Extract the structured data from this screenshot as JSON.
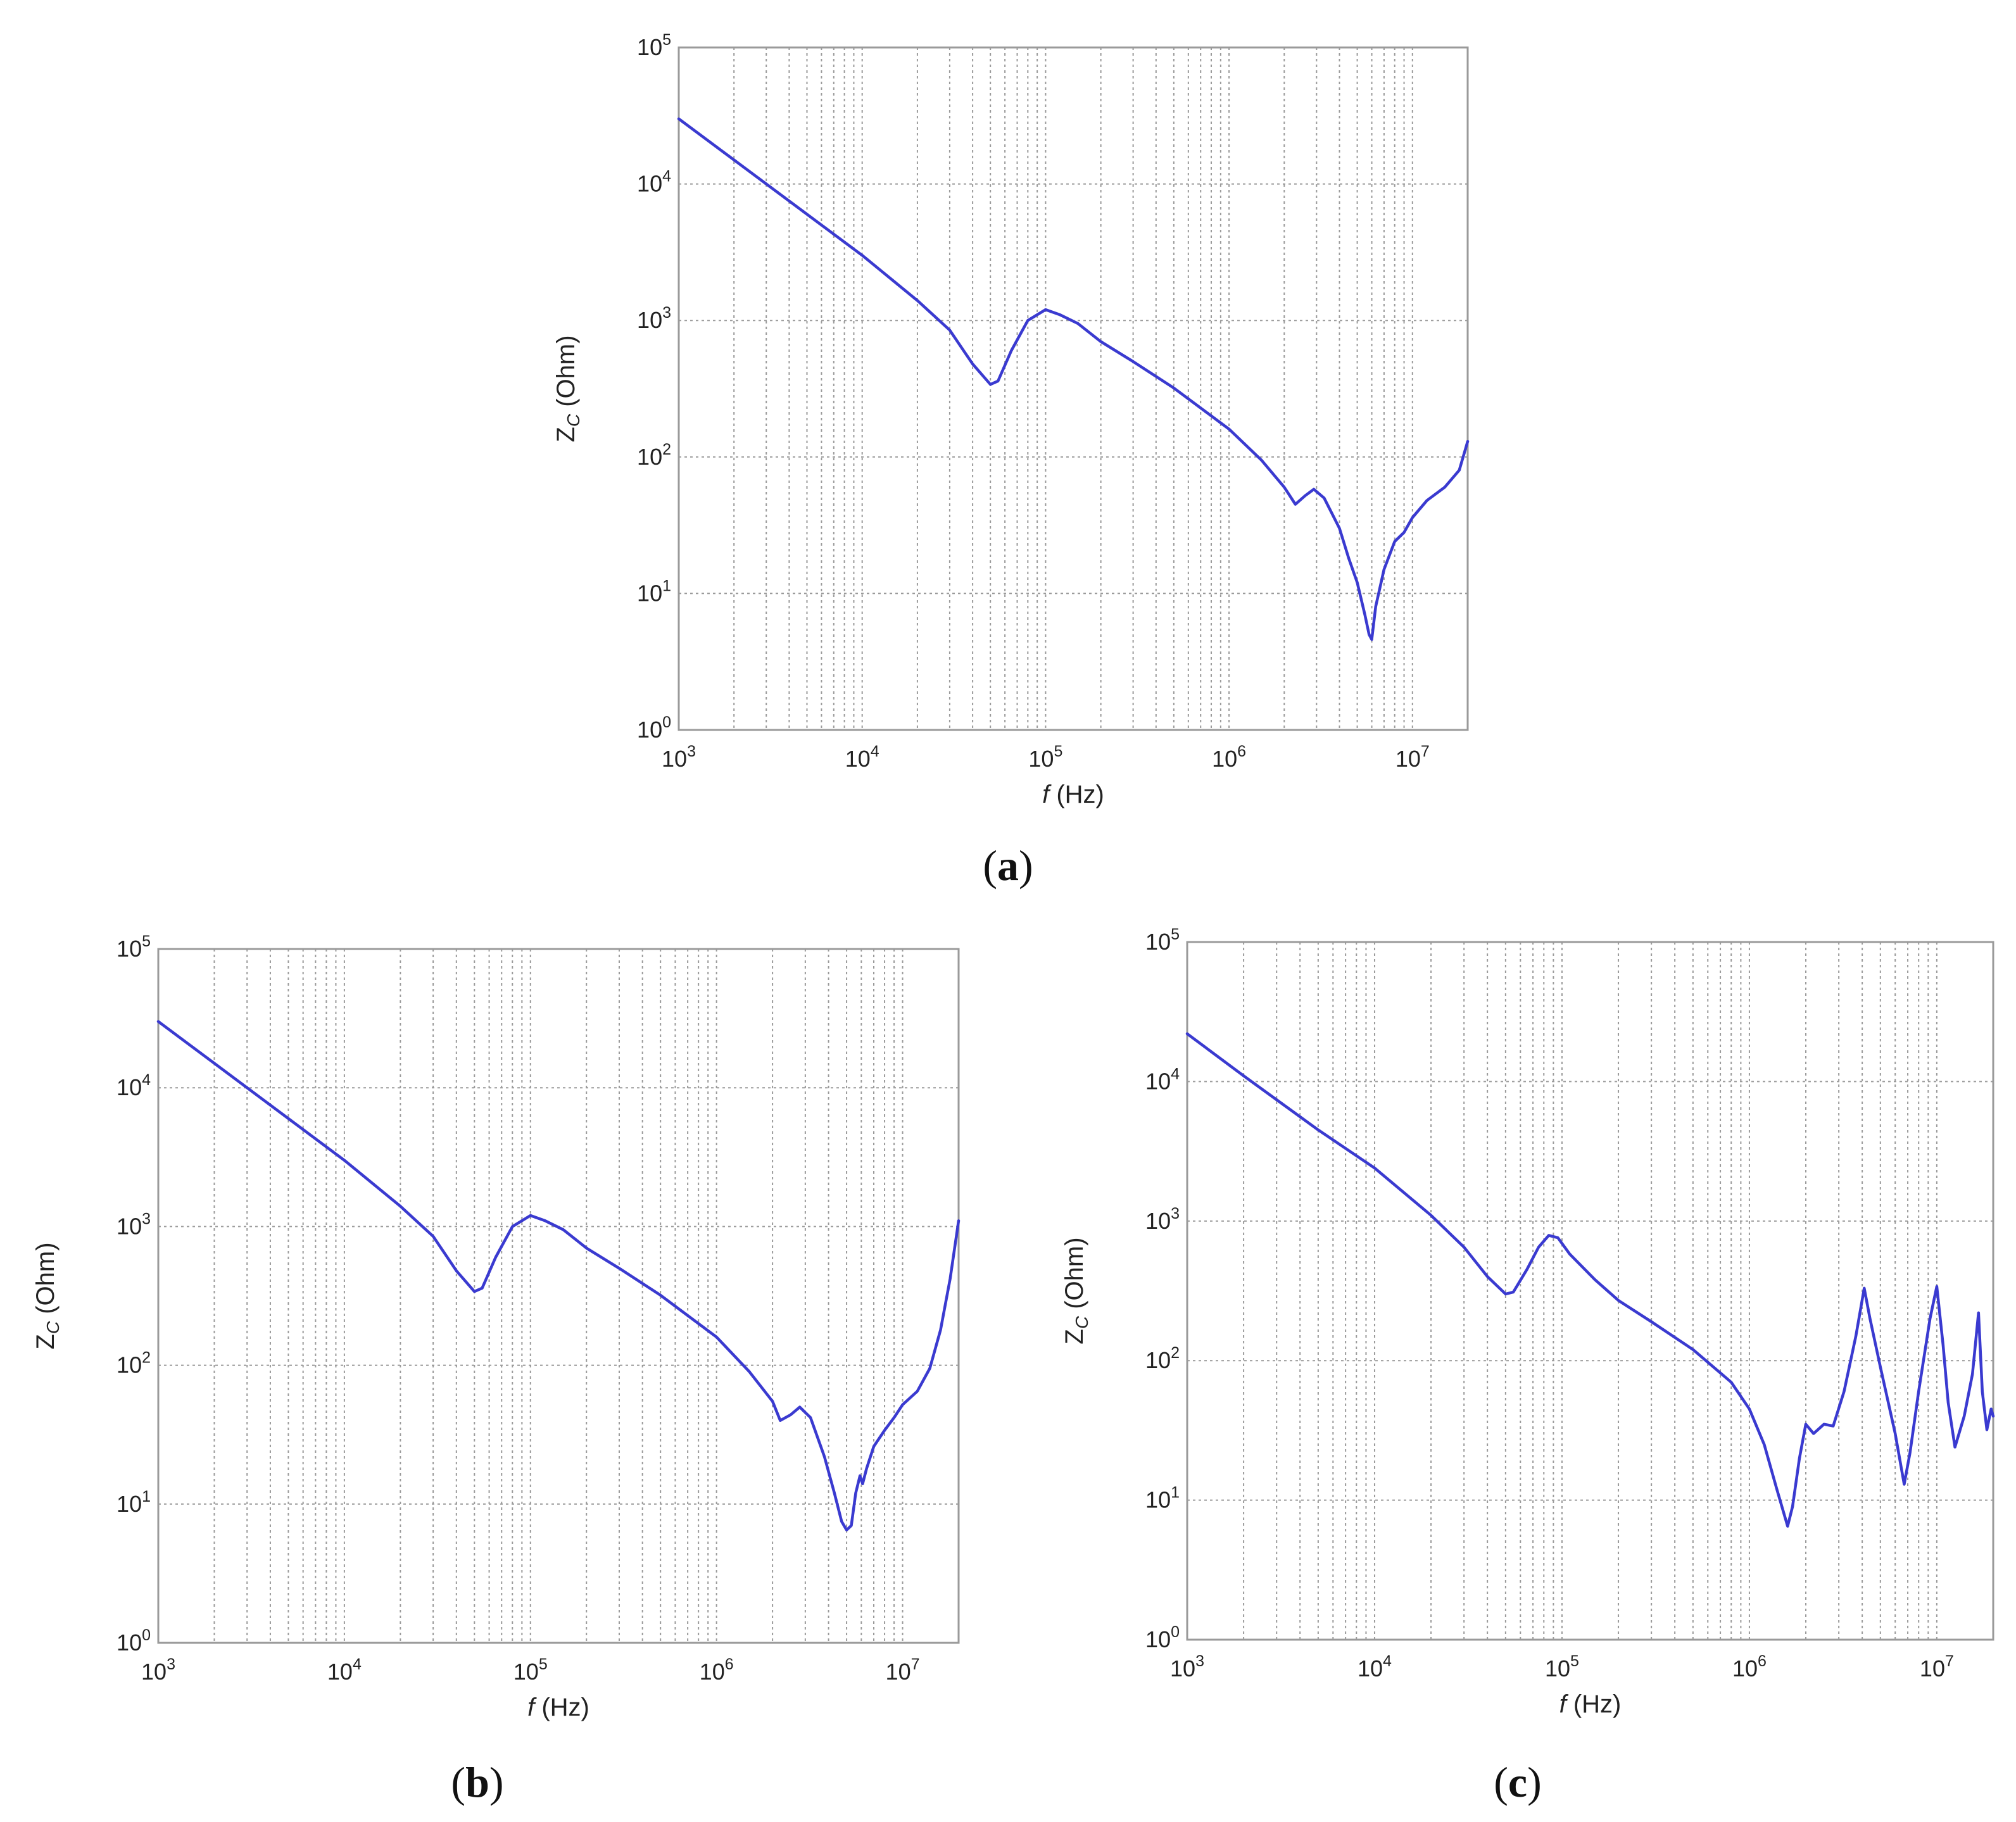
{
  "chart_data": [
    {
      "panel": "a",
      "type": "line",
      "caption": "a",
      "xlabel_italic": "f",
      "xlabel_rest": " (Hz)",
      "ylabel_main": "Z",
      "ylabel_sub": "C",
      "ylabel_rest": " (Ohm)",
      "x_scale": "log",
      "y_scale": "log",
      "xlim": [
        1000,
        20000000
      ],
      "ylim": [
        1,
        100000
      ],
      "x_ticks": [
        {
          "base": "10",
          "exp": "3",
          "value": 1000
        },
        {
          "base": "10",
          "exp": "4",
          "value": 10000
        },
        {
          "base": "10",
          "exp": "5",
          "value": 100000
        },
        {
          "base": "10",
          "exp": "6",
          "value": 1000000
        },
        {
          "base": "10",
          "exp": "7",
          "value": 10000000
        }
      ],
      "y_ticks": [
        {
          "base": "10",
          "exp": "0",
          "value": 1
        },
        {
          "base": "10",
          "exp": "1",
          "value": 10
        },
        {
          "base": "10",
          "exp": "2",
          "value": 100
        },
        {
          "base": "10",
          "exp": "3",
          "value": 1000
        },
        {
          "base": "10",
          "exp": "4",
          "value": 10000
        },
        {
          "base": "10",
          "exp": "5",
          "value": 100000
        }
      ],
      "grid": true,
      "line_color": "#3a3ad0",
      "series": [
        {
          "x": [
            1000,
            2000,
            5000,
            10000,
            20000,
            30000,
            40000,
            50000,
            55000,
            65000,
            80000,
            100000,
            120000,
            150000,
            200000,
            300000,
            500000,
            1000000,
            1500000,
            2000000,
            2300000,
            2600000,
            2900000,
            3300000,
            4000000,
            4500000,
            5000000,
            5500000,
            5800000,
            6000000,
            6300000,
            7000000,
            8000000,
            9000000,
            10000000,
            12000000,
            15000000,
            18000000,
            20000000
          ],
          "y": [
            30000,
            15000,
            6000,
            3000,
            1400,
            850,
            480,
            340,
            360,
            600,
            1000,
            1200,
            1100,
            950,
            700,
            500,
            320,
            160,
            95,
            60,
            45,
            52,
            58,
            50,
            30,
            18,
            12,
            7,
            5,
            4.6,
            8,
            15,
            24,
            28,
            36,
            48,
            60,
            80,
            130
          ]
        }
      ]
    },
    {
      "panel": "b",
      "type": "line",
      "caption": "b",
      "xlabel_italic": "f",
      "xlabel_rest": " (Hz)",
      "ylabel_main": "Z",
      "ylabel_sub": "C",
      "ylabel_rest": " (Ohm)",
      "x_scale": "log",
      "y_scale": "log",
      "xlim": [
        1000,
        20000000
      ],
      "ylim": [
        1,
        100000
      ],
      "x_ticks": [
        {
          "base": "10",
          "exp": "3",
          "value": 1000
        },
        {
          "base": "10",
          "exp": "4",
          "value": 10000
        },
        {
          "base": "10",
          "exp": "5",
          "value": 100000
        },
        {
          "base": "10",
          "exp": "6",
          "value": 1000000
        },
        {
          "base": "10",
          "exp": "7",
          "value": 10000000
        }
      ],
      "y_ticks": [
        {
          "base": "10",
          "exp": "0",
          "value": 1
        },
        {
          "base": "10",
          "exp": "1",
          "value": 10
        },
        {
          "base": "10",
          "exp": "2",
          "value": 100
        },
        {
          "base": "10",
          "exp": "3",
          "value": 1000
        },
        {
          "base": "10",
          "exp": "4",
          "value": 10000
        },
        {
          "base": "10",
          "exp": "5",
          "value": 100000
        }
      ],
      "grid": true,
      "line_color": "#3a3ad0",
      "series": [
        {
          "x": [
            1000,
            2000,
            5000,
            10000,
            20000,
            30000,
            40000,
            50000,
            55000,
            65000,
            80000,
            100000,
            120000,
            150000,
            200000,
            300000,
            500000,
            1000000,
            1500000,
            2000000,
            2200000,
            2500000,
            2800000,
            3200000,
            3800000,
            4300000,
            4700000,
            5000000,
            5300000,
            5600000,
            5900000,
            6100000,
            6400000,
            7000000,
            8000000,
            9000000,
            10000000,
            12000000,
            14000000,
            16000000,
            18000000,
            20000000
          ],
          "y": [
            30000,
            15000,
            6000,
            3000,
            1400,
            850,
            480,
            340,
            360,
            600,
            1000,
            1200,
            1100,
            950,
            700,
            500,
            320,
            160,
            90,
            55,
            40,
            44,
            50,
            42,
            22,
            12,
            7.5,
            6.5,
            7,
            12,
            16,
            14,
            18,
            26,
            34,
            42,
            52,
            65,
            95,
            180,
            420,
            1100
          ]
        }
      ]
    },
    {
      "panel": "c",
      "type": "line",
      "caption": "c",
      "xlabel_italic": "f",
      "xlabel_rest": " (Hz)",
      "ylabel_main": "Z",
      "ylabel_sub": "C",
      "ylabel_rest": " (Ohm)",
      "x_scale": "log",
      "y_scale": "log",
      "xlim": [
        1000,
        20000000
      ],
      "ylim": [
        1,
        100000
      ],
      "x_ticks": [
        {
          "base": "10",
          "exp": "3",
          "value": 1000
        },
        {
          "base": "10",
          "exp": "4",
          "value": 10000
        },
        {
          "base": "10",
          "exp": "5",
          "value": 100000
        },
        {
          "base": "10",
          "exp": "6",
          "value": 1000000
        },
        {
          "base": "10",
          "exp": "7",
          "value": 10000000
        }
      ],
      "y_ticks": [
        {
          "base": "10",
          "exp": "0",
          "value": 1
        },
        {
          "base": "10",
          "exp": "1",
          "value": 10
        },
        {
          "base": "10",
          "exp": "2",
          "value": 100
        },
        {
          "base": "10",
          "exp": "3",
          "value": 1000
        },
        {
          "base": "10",
          "exp": "4",
          "value": 10000
        },
        {
          "base": "10",
          "exp": "5",
          "value": 100000
        }
      ],
      "grid": true,
      "line_color": "#3a3ad0",
      "series": [
        {
          "x": [
            1000,
            2000,
            5000,
            10000,
            20000,
            30000,
            40000,
            50000,
            55000,
            65000,
            75000,
            85000,
            95000,
            110000,
            150000,
            200000,
            300000,
            500000,
            800000,
            1000000,
            1200000,
            1400000,
            1600000,
            1700000,
            1850000,
            2000000,
            2200000,
            2500000,
            2800000,
            3200000,
            3700000,
            4100000,
            4400000,
            5000000,
            6000000,
            6700000,
            7200000,
            8000000,
            9200000,
            10000000,
            10800000,
            11500000,
            12500000,
            14000000,
            15500000,
            16700000,
            17500000,
            18500000,
            19500000,
            20000000
          ],
          "y": [
            22000,
            11000,
            4500,
            2400,
            1100,
            650,
            400,
            300,
            310,
            450,
            650,
            790,
            760,
            580,
            380,
            270,
            190,
            120,
            70,
            45,
            25,
            12,
            6.5,
            9,
            20,
            35,
            30,
            35,
            34,
            60,
            150,
            330,
            200,
            90,
            30,
            13,
            22,
            60,
            200,
            340,
            130,
            50,
            24,
            40,
            80,
            220,
            60,
            32,
            45,
            40
          ]
        }
      ]
    }
  ]
}
